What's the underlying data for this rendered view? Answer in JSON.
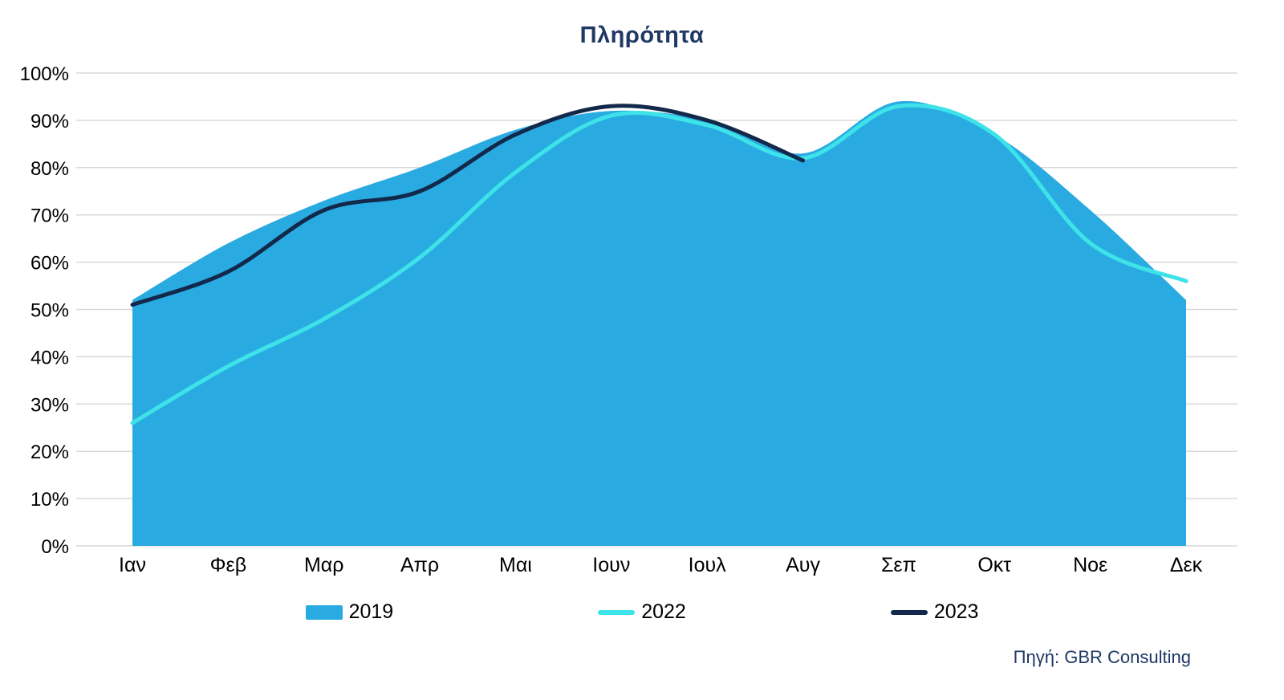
{
  "chart": {
    "title": "Πληρότητα",
    "source": "Πηγή: GBR Consulting"
  },
  "legend": [
    {
      "label": "2019",
      "type": "area",
      "color": "#29ABE2"
    },
    {
      "label": "2022",
      "type": "line",
      "color": "#3DE3E8"
    },
    {
      "label": "2023",
      "type": "line",
      "color": "#13294B"
    }
  ],
  "chart_data": {
    "type": "area",
    "title": "Πληρότητα",
    "categories": [
      "Ιαν",
      "Φεβ",
      "Μαρ",
      "Απρ",
      "Μαι",
      "Ιουν",
      "Ιουλ",
      "Αυγ",
      "Σεπ",
      "Οκτ",
      "Νοε",
      "Δεκ"
    ],
    "series": [
      {
        "name": "2019",
        "type": "area",
        "color": "#29ABE2",
        "values": [
          52,
          64,
          73,
          80,
          88,
          92,
          90,
          83,
          94,
          87,
          71,
          52
        ]
      },
      {
        "name": "2022",
        "type": "line",
        "color": "#3DE3E8",
        "values": [
          26,
          38,
          48,
          61,
          79,
          91,
          89,
          82,
          93,
          87,
          64,
          56
        ]
      },
      {
        "name": "2023",
        "type": "line",
        "color": "#13294B",
        "values": [
          51,
          58,
          71,
          75,
          87,
          93,
          90,
          81.5,
          null,
          null,
          null,
          null
        ]
      }
    ],
    "xlabel": "",
    "ylabel": "",
    "ylim": [
      0,
      100
    ],
    "ytick_step": 10,
    "ytick_format": "percent",
    "grid": "horizontal",
    "gridline_color": "#D9D9D9",
    "axis_text_color": "#000000",
    "legend_position": "bottom",
    "source": "Πηγή: GBR Consulting"
  },
  "colors": {
    "title": "#1F3864",
    "background": "#FFFFFF"
  }
}
